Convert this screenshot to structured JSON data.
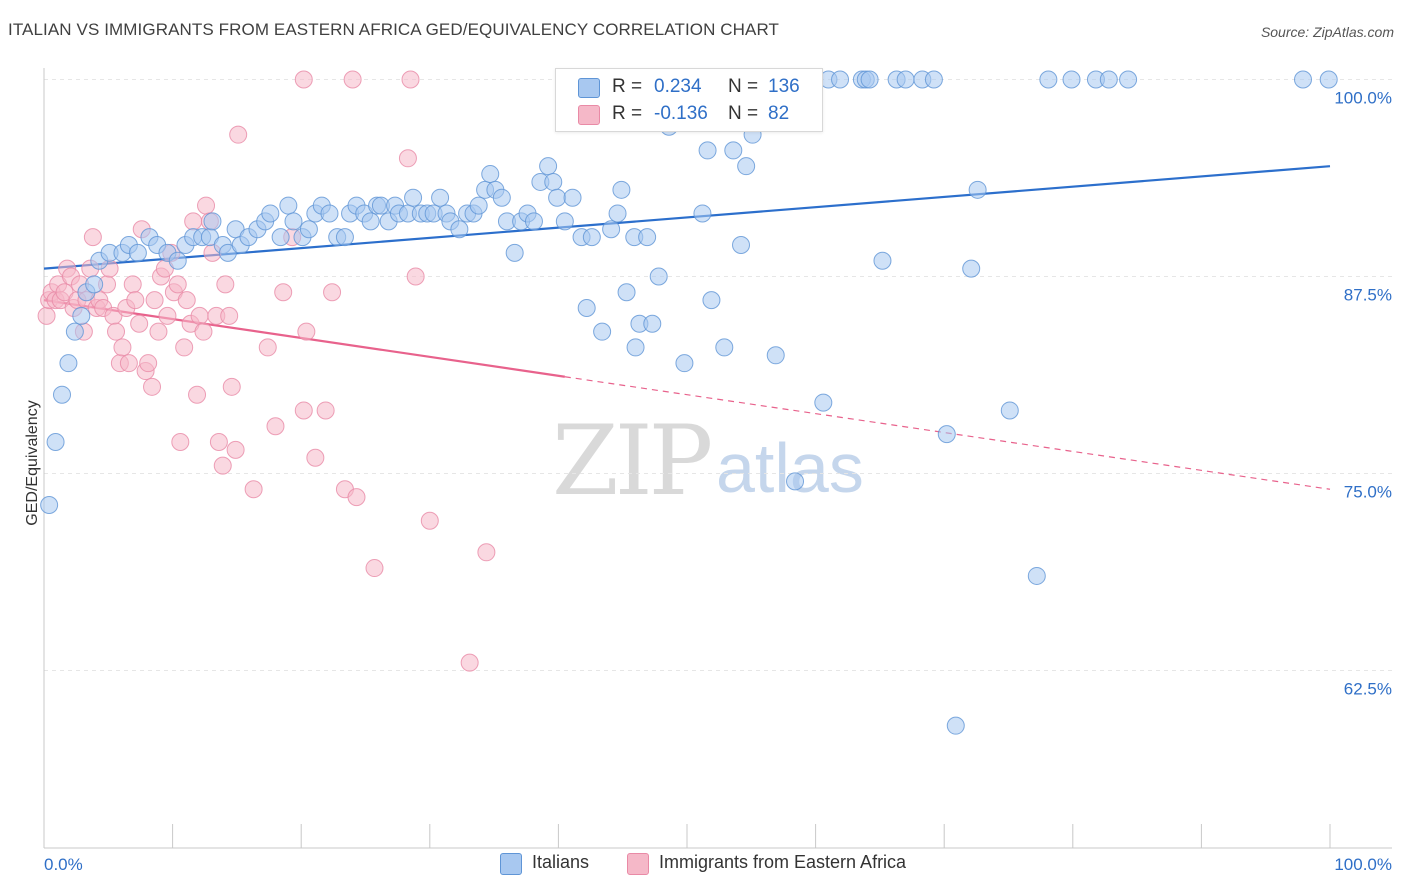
{
  "title": "ITALIAN VS IMMIGRANTS FROM EASTERN AFRICA GED/EQUIVALENCY CORRELATION CHART",
  "source": "Source: ZipAtlas.com",
  "watermark": {
    "zip": "ZIP",
    "atlas": "atlas"
  },
  "legend": {
    "rows": [
      {
        "r_label": "R =",
        "r_value": "0.234",
        "n_label": "N =",
        "n_value": "136",
        "color": "#a8c8f0"
      },
      {
        "r_label": "R =",
        "r_value": "-0.136",
        "n_label": "N =",
        "n_value": "82",
        "color": "#f5b8c8"
      }
    ]
  },
  "bottom_legend": {
    "italians": "Italians",
    "immigrants": "Immigrants from Eastern Africa"
  },
  "colors": {
    "blue_fill": "#a8c8f0",
    "blue_stroke": "#5f95d6",
    "blue_line": "#2c6fcc",
    "pink_fill": "#f5b8c8",
    "pink_stroke": "#e98aa6",
    "pink_line": "#e8628c",
    "axis_text": "#2f6fc7",
    "grid": "#e6e6e6"
  },
  "chart_data": {
    "type": "scatter",
    "title": "ITALIAN VS IMMIGRANTS FROM EASTERN AFRICA GED/EQUIVALENCY CORRELATION CHART",
    "xlabel": "",
    "ylabel": "GED/Equivalency",
    "xlim": [
      0,
      100
    ],
    "ylim": [
      51,
      102
    ],
    "x_tick_labels": [
      "0.0%",
      "100.0%"
    ],
    "y_ticks": [
      100,
      87.5,
      75,
      62.5
    ],
    "y_tick_labels": [
      "100.0%",
      "87.5%",
      "75.0%",
      "62.5%"
    ],
    "grid": true,
    "series": [
      {
        "name": "Italians",
        "r": 0.234,
        "n": 136,
        "trend": {
          "x": [
            0,
            100
          ],
          "y": [
            88.0,
            94.5
          ],
          "dashed_from": null
        },
        "points": [
          [
            0.4,
            73
          ],
          [
            0.9,
            77
          ],
          [
            1.4,
            80
          ],
          [
            1.9,
            82
          ],
          [
            2.4,
            84
          ],
          [
            2.9,
            85
          ],
          [
            3.3,
            86.5
          ],
          [
            3.9,
            87
          ],
          [
            4.3,
            88.5
          ],
          [
            5.1,
            89
          ],
          [
            6.1,
            89
          ],
          [
            6.6,
            89.5
          ],
          [
            7.3,
            89
          ],
          [
            8.2,
            90
          ],
          [
            8.8,
            89.5
          ],
          [
            9.6,
            89
          ],
          [
            10.4,
            88.5
          ],
          [
            11.0,
            89.5
          ],
          [
            11.6,
            90
          ],
          [
            12.3,
            90
          ],
          [
            12.9,
            90
          ],
          [
            13.1,
            91
          ],
          [
            13.9,
            89.5
          ],
          [
            14.3,
            89
          ],
          [
            14.9,
            90.5
          ],
          [
            15.3,
            89.5
          ],
          [
            15.9,
            90
          ],
          [
            16.6,
            90.5
          ],
          [
            17.2,
            91
          ],
          [
            17.6,
            91.5
          ],
          [
            18.4,
            90
          ],
          [
            19.0,
            92
          ],
          [
            19.4,
            91
          ],
          [
            20.1,
            90
          ],
          [
            20.6,
            90.5
          ],
          [
            21.1,
            91.5
          ],
          [
            21.6,
            92
          ],
          [
            22.2,
            91.5
          ],
          [
            22.8,
            90
          ],
          [
            23.4,
            90
          ],
          [
            23.8,
            91.5
          ],
          [
            24.3,
            92
          ],
          [
            24.9,
            91.5
          ],
          [
            25.4,
            91
          ],
          [
            25.9,
            92
          ],
          [
            26.2,
            92
          ],
          [
            26.8,
            91
          ],
          [
            27.3,
            92
          ],
          [
            27.6,
            91.5
          ],
          [
            28.3,
            91.5
          ],
          [
            28.7,
            92.5
          ],
          [
            29.3,
            91.5
          ],
          [
            29.8,
            91.5
          ],
          [
            30.3,
            91.5
          ],
          [
            30.8,
            92.5
          ],
          [
            31.3,
            91.5
          ],
          [
            31.6,
            91
          ],
          [
            32.3,
            90.5
          ],
          [
            32.9,
            91.5
          ],
          [
            33.4,
            91.5
          ],
          [
            33.8,
            92
          ],
          [
            34.3,
            93
          ],
          [
            34.7,
            94
          ],
          [
            35.1,
            93
          ],
          [
            35.6,
            92.5
          ],
          [
            36.0,
            91
          ],
          [
            36.6,
            89
          ],
          [
            37.1,
            91
          ],
          [
            37.6,
            91.5
          ],
          [
            38.1,
            91
          ],
          [
            38.6,
            93.5
          ],
          [
            39.2,
            94.5
          ],
          [
            39.6,
            93.5
          ],
          [
            39.9,
            92.5
          ],
          [
            40.5,
            91
          ],
          [
            41.1,
            92.5
          ],
          [
            41.8,
            90
          ],
          [
            42.2,
            85.5
          ],
          [
            42.6,
            90
          ],
          [
            43.4,
            84
          ],
          [
            44.1,
            90.5
          ],
          [
            44.6,
            91.5
          ],
          [
            44.9,
            93
          ],
          [
            45.3,
            86.5
          ],
          [
            45.9,
            90
          ],
          [
            46.0,
            83
          ],
          [
            46.3,
            84.5
          ],
          [
            46.9,
            90
          ],
          [
            47.3,
            84.5
          ],
          [
            47.8,
            87.5
          ],
          [
            48.6,
            97
          ],
          [
            49.8,
            82
          ],
          [
            51.2,
            91.5
          ],
          [
            51.6,
            95.5
          ],
          [
            51.9,
            86
          ],
          [
            52.4,
            100
          ],
          [
            52.9,
            83
          ],
          [
            53.6,
            95.5
          ],
          [
            54.2,
            89.5
          ],
          [
            54.6,
            94.5
          ],
          [
            55.1,
            96.5
          ],
          [
            55.4,
            98
          ],
          [
            55.9,
            100
          ],
          [
            56.1,
            100
          ],
          [
            56.6,
            100
          ],
          [
            56.9,
            82.5
          ],
          [
            57.6,
            100
          ],
          [
            58.4,
            74.5
          ],
          [
            58.6,
            100
          ],
          [
            59.0,
            100
          ],
          [
            60.6,
            79.5
          ],
          [
            61.0,
            100
          ],
          [
            61.9,
            100
          ],
          [
            63.6,
            100
          ],
          [
            63.9,
            100
          ],
          [
            64.2,
            100
          ],
          [
            65.2,
            88.5
          ],
          [
            66.3,
            100
          ],
          [
            67.0,
            100
          ],
          [
            68.3,
            100
          ],
          [
            69.2,
            100
          ],
          [
            70.2,
            77.5
          ],
          [
            70.9,
            59
          ],
          [
            72.6,
            93
          ],
          [
            75.1,
            79
          ],
          [
            77.2,
            68.5
          ],
          [
            78.1,
            100
          ],
          [
            79.9,
            100
          ],
          [
            81.8,
            100
          ],
          [
            82.8,
            100
          ],
          [
            84.3,
            100
          ],
          [
            97.9,
            100
          ],
          [
            99.9,
            100
          ],
          [
            72.1,
            88
          ]
        ]
      },
      {
        "name": "Immigrants from Eastern Africa",
        "r": -0.136,
        "n": 82,
        "trend": {
          "x": [
            0,
            100
          ],
          "y": [
            86.0,
            74.0
          ],
          "dashed_from": 40.5
        },
        "points": [
          [
            0.2,
            85
          ],
          [
            0.4,
            86
          ],
          [
            0.6,
            86.5
          ],
          [
            0.9,
            86
          ],
          [
            1.1,
            87
          ],
          [
            1.3,
            86
          ],
          [
            1.6,
            86.5
          ],
          [
            1.8,
            88
          ],
          [
            2.1,
            87.5
          ],
          [
            2.3,
            85.5
          ],
          [
            2.6,
            86
          ],
          [
            2.8,
            87
          ],
          [
            3.1,
            84
          ],
          [
            3.3,
            86
          ],
          [
            3.6,
            88
          ],
          [
            3.8,
            90
          ],
          [
            4.1,
            85.5
          ],
          [
            4.3,
            86
          ],
          [
            4.6,
            85.5
          ],
          [
            4.9,
            87
          ],
          [
            5.1,
            88
          ],
          [
            5.4,
            85
          ],
          [
            5.6,
            84
          ],
          [
            5.9,
            82
          ],
          [
            6.1,
            83
          ],
          [
            6.4,
            85.5
          ],
          [
            6.6,
            82
          ],
          [
            6.9,
            87
          ],
          [
            7.1,
            86
          ],
          [
            7.4,
            84.5
          ],
          [
            7.6,
            90.5
          ],
          [
            7.9,
            81.5
          ],
          [
            8.1,
            82
          ],
          [
            8.4,
            80.5
          ],
          [
            8.6,
            86
          ],
          [
            8.9,
            84
          ],
          [
            9.1,
            87.5
          ],
          [
            9.4,
            88
          ],
          [
            9.6,
            85
          ],
          [
            9.9,
            89
          ],
          [
            10.1,
            86.5
          ],
          [
            10.4,
            87
          ],
          [
            10.6,
            77
          ],
          [
            10.9,
            83
          ],
          [
            11.1,
            86
          ],
          [
            11.4,
            84.5
          ],
          [
            11.6,
            91
          ],
          [
            11.9,
            80
          ],
          [
            12.1,
            85
          ],
          [
            12.4,
            84
          ],
          [
            12.6,
            92
          ],
          [
            12.9,
            91
          ],
          [
            13.1,
            89
          ],
          [
            13.4,
            85
          ],
          [
            13.6,
            77
          ],
          [
            13.9,
            75.5
          ],
          [
            14.1,
            87
          ],
          [
            14.4,
            85
          ],
          [
            14.6,
            80.5
          ],
          [
            14.9,
            76.5
          ],
          [
            15.1,
            96.5
          ],
          [
            16.3,
            74
          ],
          [
            17.4,
            83
          ],
          [
            18.0,
            78
          ],
          [
            18.6,
            86.5
          ],
          [
            19.3,
            90
          ],
          [
            20.2,
            79
          ],
          [
            20.4,
            84
          ],
          [
            21.1,
            76
          ],
          [
            21.9,
            79
          ],
          [
            22.4,
            86.5
          ],
          [
            23.4,
            74
          ],
          [
            24.3,
            73.5
          ],
          [
            25.7,
            69
          ],
          [
            28.3,
            95
          ],
          [
            28.9,
            87.5
          ],
          [
            30.0,
            72
          ],
          [
            33.1,
            63
          ],
          [
            34.4,
            70
          ],
          [
            20.2,
            100
          ],
          [
            24.0,
            100
          ],
          [
            28.5,
            100
          ]
        ]
      }
    ]
  }
}
